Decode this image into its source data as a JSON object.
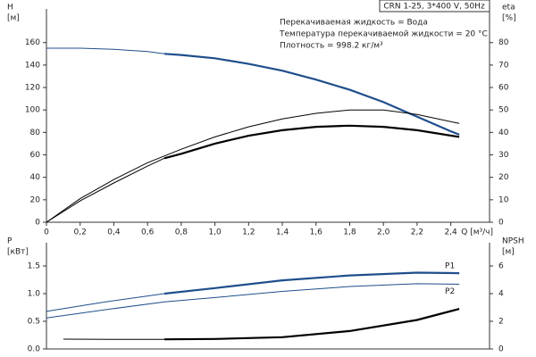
{
  "chart_data": [
    {
      "type": "line",
      "title": "CRN 1-25, 3*400 V, 50Hz",
      "annotations": [
        "Перекачиваемая жидкость = Вода",
        "Температура перекачиваемой жидкости = 20 °C",
        "Плотность = 998.2 кг/м³"
      ],
      "xlabel": "Q [м³/ч]",
      "ylabel": [
        "H",
        "[м]"
      ],
      "y2label": [
        "eta",
        "[%]"
      ],
      "xlim": [
        0,
        2.63
      ],
      "xticks": [
        0,
        {
          "value": 0.2,
          "label": "0,2"
        },
        {
          "value": 0.4,
          "label": "0,4"
        },
        {
          "value": 0.6,
          "label": "0,6"
        },
        {
          "value": 0.8,
          "label": "0,8"
        },
        {
          "value": 1,
          "label": "1,0"
        },
        {
          "value": 1.2,
          "label": "1,2"
        },
        {
          "value": 1.4,
          "label": "1,4"
        },
        {
          "value": 1.6,
          "label": "1,6"
        },
        {
          "value": 1.8,
          "label": "1,8"
        },
        {
          "value": 2,
          "label": "2,0"
        },
        {
          "value": 2.2,
          "label": "2,2"
        },
        {
          "value": 2.4,
          "label": "2,4"
        }
      ],
      "ylim": [
        0,
        190
      ],
      "yticks": [
        0,
        20,
        40,
        60,
        80,
        100,
        120,
        140,
        160
      ],
      "y2lim": [
        0,
        95
      ],
      "y2ticks": [
        0,
        10,
        20,
        30,
        40,
        50,
        60,
        70,
        80
      ],
      "series": [
        {
          "color": "#1f4e8c",
          "width": 1,
          "x": [
            0,
            0.2,
            0.4,
            0.6,
            0.7
          ],
          "values": [
            155,
            155,
            154,
            152,
            150
          ]
        },
        {
          "color": "#1f4e8c",
          "width": 2.2,
          "x": [
            0.7,
            0.8,
            1.0,
            1.2,
            1.4,
            1.6,
            1.8,
            2.0,
            2.2,
            2.4,
            2.45
          ],
          "values": [
            150,
            149,
            146,
            141,
            135,
            127,
            118,
            107,
            94,
            81,
            78
          ]
        },
        {
          "color": "#000000",
          "width": 1,
          "axis": "y2",
          "x": [
            0,
            0.2,
            0.4,
            0.6,
            0.8,
            1.0,
            1.2,
            1.4,
            1.6,
            1.8,
            2.0,
            2.2,
            2.45
          ],
          "values": [
            0,
            10.5,
            19,
            26.5,
            32.5,
            38,
            42.5,
            46,
            48.5,
            50,
            50,
            48,
            44
          ]
        },
        {
          "color": "#000000",
          "width": 1,
          "axis": "y2",
          "x": [
            0,
            0.2,
            0.4,
            0.6,
            0.7
          ],
          "values": [
            0,
            9.5,
            17.5,
            25,
            28.5
          ]
        },
        {
          "color": "#000000",
          "width": 2.2,
          "axis": "y2",
          "x": [
            0.7,
            0.8,
            1.0,
            1.2,
            1.4,
            1.6,
            1.8,
            2.0,
            2.2,
            2.45
          ],
          "values": [
            28.5,
            30.5,
            35,
            38.5,
            41,
            42.5,
            43,
            42.5,
            41,
            38
          ]
        }
      ]
    },
    {
      "type": "line",
      "ylabel": [
        "P",
        "[кВт]"
      ],
      "y2label": [
        "NPSH",
        "[м]"
      ],
      "xlim": [
        0,
        2.63
      ],
      "ylim": [
        0,
        1.92
      ],
      "yticks": [
        {
          "value": 0,
          "label": "0.0"
        },
        0.5,
        {
          "value": 1,
          "label": "1.0"
        },
        1.5
      ],
      "y2lim": [
        0,
        7.68
      ],
      "y2ticks": [
        0,
        2,
        4,
        6
      ],
      "series": [
        {
          "color": "#1f4e8c",
          "width": 1,
          "x": [
            0,
            0.35,
            0.7
          ],
          "values": [
            0.68,
            0.85,
            1.0
          ]
        },
        {
          "name": "P1",
          "color": "#1f4e8c",
          "width": 2.2,
          "x": [
            0.7,
            1.0,
            1.4,
            1.8,
            2.2,
            2.45
          ],
          "values": [
            1.0,
            1.1,
            1.24,
            1.33,
            1.38,
            1.37
          ]
        },
        {
          "name": "P2",
          "color": "#1f4e8c",
          "width": 1,
          "x": [
            0,
            0.35,
            0.7,
            1.0,
            1.4,
            1.8,
            2.2,
            2.45
          ],
          "values": [
            0.56,
            0.71,
            0.85,
            0.93,
            1.04,
            1.13,
            1.18,
            1.17
          ]
        },
        {
          "color": "#000000",
          "width": 1,
          "axis": "y2",
          "x": [
            0.1,
            0.4,
            0.7
          ],
          "values": [
            0.71,
            0.7,
            0.7
          ]
        },
        {
          "color": "#000000",
          "width": 2.2,
          "axis": "y2",
          "x": [
            0.7,
            1.0,
            1.4,
            1.8,
            2.2,
            2.45
          ],
          "values": [
            0.7,
            0.72,
            0.85,
            1.3,
            2.1,
            2.9
          ]
        }
      ]
    }
  ]
}
